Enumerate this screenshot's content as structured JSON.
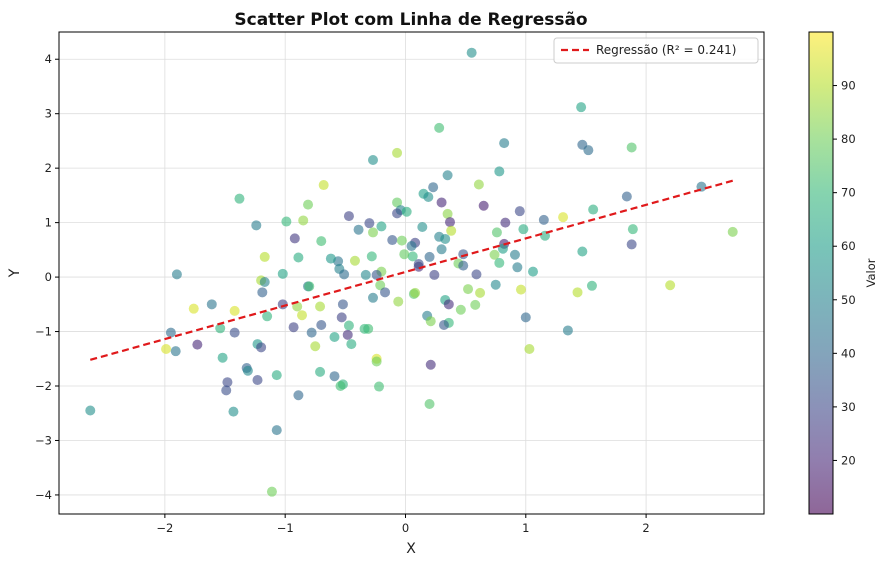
{
  "chart_data": {
    "type": "scatter",
    "title": "Scatter Plot com Linha de Regressão",
    "xlabel": "X",
    "ylabel": "Y",
    "xlim": [
      -2.88,
      2.98
    ],
    "ylim": [
      -4.35,
      4.5
    ],
    "xticks": [
      -2,
      -1,
      0,
      1,
      2
    ],
    "yticks": [
      -4,
      -3,
      -2,
      -1,
      0,
      1,
      2,
      3,
      4
    ],
    "grid": true,
    "legend": {
      "position": "top-right",
      "label": "Regressão (R² = 0.241)"
    },
    "regression": {
      "x": [
        -2.62,
        2.72
      ],
      "y": [
        -1.52,
        1.77
      ],
      "color": "#e0191b"
    },
    "colorbar": {
      "label": "Valor",
      "min": 10,
      "max": 100,
      "ticks": [
        20,
        30,
        40,
        50,
        60,
        70,
        80,
        90
      ]
    },
    "points": [
      {
        "x": 0.55,
        "y": 4.12,
        "v": 55
      },
      {
        "x": 1.46,
        "y": 3.12,
        "v": 62
      },
      {
        "x": 0.28,
        "y": 2.74,
        "v": 72
      },
      {
        "x": 1.47,
        "y": 2.43,
        "v": 40
      },
      {
        "x": 1.52,
        "y": 2.33,
        "v": 42
      },
      {
        "x": 0.82,
        "y": 2.46,
        "v": 48
      },
      {
        "x": 1.88,
        "y": 2.38,
        "v": 75
      },
      {
        "x": -0.07,
        "y": 2.28,
        "v": 88
      },
      {
        "x": -0.27,
        "y": 2.15,
        "v": 55
      },
      {
        "x": 0.78,
        "y": 1.94,
        "v": 58
      },
      {
        "x": 0.35,
        "y": 1.87,
        "v": 50
      },
      {
        "x": 0.61,
        "y": 1.7,
        "v": 85
      },
      {
        "x": -0.68,
        "y": 1.69,
        "v": 92
      },
      {
        "x": 2.46,
        "y": 1.66,
        "v": 45
      },
      {
        "x": 0.23,
        "y": 1.65,
        "v": 40
      },
      {
        "x": 1.84,
        "y": 1.48,
        "v": 38
      },
      {
        "x": 0.15,
        "y": 1.53,
        "v": 60
      },
      {
        "x": 0.19,
        "y": 1.47,
        "v": 55
      },
      {
        "x": -1.38,
        "y": 1.44,
        "v": 68
      },
      {
        "x": 0.3,
        "y": 1.37,
        "v": 20
      },
      {
        "x": -0.81,
        "y": 1.33,
        "v": 80
      },
      {
        "x": 0.65,
        "y": 1.31,
        "v": 18
      },
      {
        "x": -0.07,
        "y": 1.37,
        "v": 78
      },
      {
        "x": 1.56,
        "y": 1.24,
        "v": 66
      },
      {
        "x": -0.04,
        "y": 1.23,
        "v": 50
      },
      {
        "x": -0.07,
        "y": 1.17,
        "v": 30
      },
      {
        "x": 0.01,
        "y": 1.2,
        "v": 66
      },
      {
        "x": 0.35,
        "y": 1.16,
        "v": 84
      },
      {
        "x": -0.47,
        "y": 1.12,
        "v": 28
      },
      {
        "x": 0.95,
        "y": 1.21,
        "v": 30
      },
      {
        "x": 1.31,
        "y": 1.1,
        "v": 95
      },
      {
        "x": 1.15,
        "y": 1.05,
        "v": 38
      },
      {
        "x": -0.85,
        "y": 1.04,
        "v": 85
      },
      {
        "x": -0.99,
        "y": 1.02,
        "v": 70
      },
      {
        "x": 0.37,
        "y": 1.01,
        "v": 20
      },
      {
        "x": -0.3,
        "y": 0.99,
        "v": 30
      },
      {
        "x": 0.83,
        "y": 1.0,
        "v": 22
      },
      {
        "x": -1.24,
        "y": 0.95,
        "v": 48
      },
      {
        "x": -0.2,
        "y": 0.93,
        "v": 62
      },
      {
        "x": 0.14,
        "y": 0.92,
        "v": 55
      },
      {
        "x": -0.39,
        "y": 0.87,
        "v": 45
      },
      {
        "x": 1.89,
        "y": 0.88,
        "v": 70
      },
      {
        "x": 0.98,
        "y": 0.88,
        "v": 65
      },
      {
        "x": 2.72,
        "y": 0.83,
        "v": 82
      },
      {
        "x": 0.38,
        "y": 0.85,
        "v": 90
      },
      {
        "x": 0.76,
        "y": 0.82,
        "v": 75
      },
      {
        "x": -0.27,
        "y": 0.82,
        "v": 82
      },
      {
        "x": -0.11,
        "y": 0.68,
        "v": 35
      },
      {
        "x": -0.03,
        "y": 0.67,
        "v": 80
      },
      {
        "x": 0.08,
        "y": 0.63,
        "v": 28
      },
      {
        "x": 0.28,
        "y": 0.74,
        "v": 50
      },
      {
        "x": 1.16,
        "y": 0.76,
        "v": 65
      },
      {
        "x": -0.7,
        "y": 0.66,
        "v": 72
      },
      {
        "x": 0.33,
        "y": 0.7,
        "v": 55
      },
      {
        "x": -0.92,
        "y": 0.71,
        "v": 25
      },
      {
        "x": 0.05,
        "y": 0.57,
        "v": 45
      },
      {
        "x": 0.3,
        "y": 0.51,
        "v": 48
      },
      {
        "x": 0.82,
        "y": 0.61,
        "v": 18
      },
      {
        "x": 1.88,
        "y": 0.6,
        "v": 30
      },
      {
        "x": 0.91,
        "y": 0.41,
        "v": 48
      },
      {
        "x": 1.47,
        "y": 0.47,
        "v": 62
      },
      {
        "x": 0.81,
        "y": 0.52,
        "v": 60
      },
      {
        "x": 0.06,
        "y": 0.38,
        "v": 70
      },
      {
        "x": 0.48,
        "y": 0.42,
        "v": 35
      },
      {
        "x": 0.74,
        "y": 0.41,
        "v": 82
      },
      {
        "x": -0.01,
        "y": 0.42,
        "v": 78
      },
      {
        "x": -1.17,
        "y": 0.37,
        "v": 90
      },
      {
        "x": -0.89,
        "y": 0.36,
        "v": 65
      },
      {
        "x": -0.56,
        "y": 0.29,
        "v": 45
      },
      {
        "x": -0.28,
        "y": 0.38,
        "v": 70
      },
      {
        "x": -0.62,
        "y": 0.34,
        "v": 58
      },
      {
        "x": 0.2,
        "y": 0.37,
        "v": 40
      },
      {
        "x": 0.44,
        "y": 0.25,
        "v": 80
      },
      {
        "x": 0.78,
        "y": 0.26,
        "v": 70
      },
      {
        "x": -0.42,
        "y": 0.3,
        "v": 88
      },
      {
        "x": 0.48,
        "y": 0.21,
        "v": 38
      },
      {
        "x": 0.93,
        "y": 0.18,
        "v": 48
      },
      {
        "x": 0.11,
        "y": 0.19,
        "v": 22
      },
      {
        "x": -0.55,
        "y": 0.15,
        "v": 50
      },
      {
        "x": -0.2,
        "y": 0.1,
        "v": 82
      },
      {
        "x": -0.51,
        "y": 0.05,
        "v": 42
      },
      {
        "x": -1.02,
        "y": 0.06,
        "v": 62
      },
      {
        "x": 1.06,
        "y": 0.1,
        "v": 60
      },
      {
        "x": -0.24,
        "y": 0.04,
        "v": 35
      },
      {
        "x": 0.59,
        "y": 0.05,
        "v": 30
      },
      {
        "x": 0.24,
        "y": 0.04,
        "v": 28
      },
      {
        "x": -0.33,
        "y": 0.04,
        "v": 52
      },
      {
        "x": 0.11,
        "y": 0.24,
        "v": 32
      },
      {
        "x": -1.9,
        "y": 0.05,
        "v": 48
      },
      {
        "x": -1.2,
        "y": -0.06,
        "v": 88
      },
      {
        "x": -1.17,
        "y": -0.09,
        "v": 50
      },
      {
        "x": -0.81,
        "y": -0.17,
        "v": 45
      },
      {
        "x": -0.8,
        "y": -0.17,
        "v": 72
      },
      {
        "x": -0.21,
        "y": -0.15,
        "v": 80
      },
      {
        "x": 0.75,
        "y": -0.14,
        "v": 52
      },
      {
        "x": 1.55,
        "y": -0.16,
        "v": 68
      },
      {
        "x": 2.2,
        "y": -0.15,
        "v": 90
      },
      {
        "x": 0.52,
        "y": -0.22,
        "v": 82
      },
      {
        "x": 0.96,
        "y": -0.23,
        "v": 92
      },
      {
        "x": -0.17,
        "y": -0.28,
        "v": 35
      },
      {
        "x": -1.19,
        "y": -0.28,
        "v": 38
      },
      {
        "x": 0.62,
        "y": -0.29,
        "v": 88
      },
      {
        "x": -0.27,
        "y": -0.38,
        "v": 48
      },
      {
        "x": 0.07,
        "y": -0.31,
        "v": 75
      },
      {
        "x": 0.08,
        "y": -0.29,
        "v": 85
      },
      {
        "x": 1.43,
        "y": -0.28,
        "v": 90
      },
      {
        "x": -1.61,
        "y": -0.5,
        "v": 45
      },
      {
        "x": -0.06,
        "y": -0.45,
        "v": 85
      },
      {
        "x": -0.52,
        "y": -0.5,
        "v": 35
      },
      {
        "x": 0.33,
        "y": -0.42,
        "v": 62
      },
      {
        "x": -1.02,
        "y": -0.5,
        "v": 28
      },
      {
        "x": -1.76,
        "y": -0.58,
        "v": 95
      },
      {
        "x": -1.42,
        "y": -0.62,
        "v": 95
      },
      {
        "x": 0.58,
        "y": -0.51,
        "v": 80
      },
      {
        "x": 0.46,
        "y": -0.6,
        "v": 80
      },
      {
        "x": -0.9,
        "y": -0.54,
        "v": 85
      },
      {
        "x": -0.71,
        "y": -0.54,
        "v": 88
      },
      {
        "x": 0.36,
        "y": -0.5,
        "v": 22
      },
      {
        "x": -1.15,
        "y": -0.72,
        "v": 68
      },
      {
        "x": 0.18,
        "y": -0.71,
        "v": 48
      },
      {
        "x": -0.86,
        "y": -0.7,
        "v": 92
      },
      {
        "x": -0.53,
        "y": -0.74,
        "v": 28
      },
      {
        "x": 1.0,
        "y": -0.74,
        "v": 40
      },
      {
        "x": 0.21,
        "y": -0.81,
        "v": 82
      },
      {
        "x": 0.36,
        "y": -0.84,
        "v": 70
      },
      {
        "x": 0.32,
        "y": -0.88,
        "v": 35
      },
      {
        "x": -0.7,
        "y": -0.88,
        "v": 35
      },
      {
        "x": -0.47,
        "y": -0.89,
        "v": 68
      },
      {
        "x": -0.93,
        "y": -0.92,
        "v": 28
      },
      {
        "x": -0.31,
        "y": -0.95,
        "v": 72
      },
      {
        "x": -0.34,
        "y": -0.95,
        "v": 70
      },
      {
        "x": -1.54,
        "y": -0.94,
        "v": 68
      },
      {
        "x": -1.95,
        "y": -1.02,
        "v": 42
      },
      {
        "x": -1.42,
        "y": -1.02,
        "v": 32
      },
      {
        "x": -0.78,
        "y": -1.02,
        "v": 40
      },
      {
        "x": -0.48,
        "y": -1.06,
        "v": 22
      },
      {
        "x": 1.35,
        "y": -0.98,
        "v": 48
      },
      {
        "x": -0.59,
        "y": -1.1,
        "v": 62
      },
      {
        "x": -0.75,
        "y": -1.27,
        "v": 88
      },
      {
        "x": -1.23,
        "y": -1.23,
        "v": 58
      },
      {
        "x": -1.2,
        "y": -1.29,
        "v": 30
      },
      {
        "x": -1.73,
        "y": -1.24,
        "v": 20
      },
      {
        "x": -0.45,
        "y": -1.23,
        "v": 65
      },
      {
        "x": -1.99,
        "y": -1.32,
        "v": 95
      },
      {
        "x": -1.91,
        "y": -1.36,
        "v": 45
      },
      {
        "x": 1.03,
        "y": -1.32,
        "v": 88
      },
      {
        "x": -1.52,
        "y": -1.48,
        "v": 62
      },
      {
        "x": -0.24,
        "y": -1.5,
        "v": 95
      },
      {
        "x": -0.24,
        "y": -1.55,
        "v": 80
      },
      {
        "x": 0.21,
        "y": -1.61,
        "v": 22
      },
      {
        "x": -1.32,
        "y": -1.67,
        "v": 38
      },
      {
        "x": -1.31,
        "y": -1.72,
        "v": 52
      },
      {
        "x": -0.71,
        "y": -1.74,
        "v": 65
      },
      {
        "x": -1.07,
        "y": -1.8,
        "v": 65
      },
      {
        "x": -0.59,
        "y": -1.82,
        "v": 40
      },
      {
        "x": -1.48,
        "y": -1.93,
        "v": 30
      },
      {
        "x": -1.23,
        "y": -1.89,
        "v": 30
      },
      {
        "x": -0.52,
        "y": -1.97,
        "v": 68
      },
      {
        "x": -0.54,
        "y": -2.0,
        "v": 72
      },
      {
        "x": -0.22,
        "y": -2.01,
        "v": 72
      },
      {
        "x": -1.49,
        "y": -2.08,
        "v": 32
      },
      {
        "x": -0.89,
        "y": -2.17,
        "v": 40
      },
      {
        "x": 0.2,
        "y": -2.33,
        "v": 75
      },
      {
        "x": -2.62,
        "y": -2.45,
        "v": 55
      },
      {
        "x": -1.43,
        "y": -2.47,
        "v": 55
      },
      {
        "x": -1.07,
        "y": -2.81,
        "v": 45
      },
      {
        "x": -1.11,
        "y": -3.94,
        "v": 80
      }
    ]
  }
}
